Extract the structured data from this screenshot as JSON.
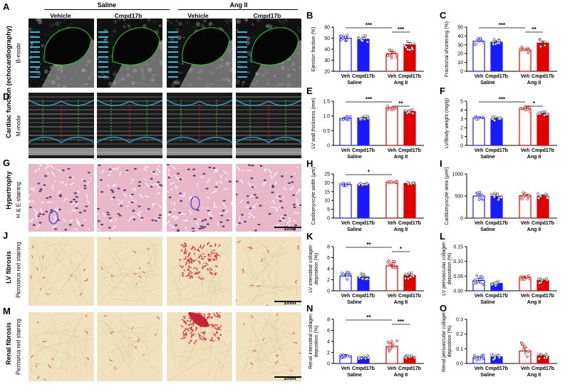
{
  "panel_labels": {
    "A": "A",
    "B": "B",
    "C": "C",
    "D": "D",
    "E": "E",
    "F": "F",
    "G": "G",
    "H": "H",
    "I": "I",
    "J": "J",
    "K": "K",
    "L": "L",
    "M": "M",
    "N": "N",
    "O": "O"
  },
  "groups": {
    "saline": "Saline",
    "angii": "Ang II",
    "vehicle": "Vehicle",
    "cmpd": "Cmpd17b"
  },
  "row_labels": {
    "cardiac": "Cardiac function (echocardiography)",
    "hypertrophy": "Hypertrophy",
    "lv_fibrosis": "LV fibrosis",
    "renal_fibrosis": "Renal fibrosis"
  },
  "modes": {
    "bmode": "B-mode",
    "mmode": "M-mode",
    "he": "H & E staining",
    "pr1": "Picrosirus red staining",
    "pr2": "Picrosirus red staining"
  },
  "scale_bars": {
    "g": "1mm",
    "j": "1mm",
    "m": "1mm"
  },
  "colors": {
    "veh": "#1a1aff",
    "cmpd": "#1a1aff",
    "ang_veh": "#e00000",
    "ang_cmpd": "#e00000"
  },
  "chart_data": [
    {
      "panel": "B",
      "type": "bar",
      "ylabel": "Ejection fraction (%)",
      "ylim": [
        20,
        60
      ],
      "yticks": [
        20,
        30,
        40,
        50,
        60
      ],
      "categories": [
        "Veh",
        "Cmpd17b",
        "Veh",
        "Cmpd17b"
      ],
      "groups": [
        "Saline",
        "Ang II"
      ],
      "values": [
        50,
        49,
        36,
        44
      ],
      "errors": [
        1.2,
        1.5,
        1.8,
        2
      ],
      "sig": [
        {
          "from": 0,
          "to": 2,
          "label": "***"
        },
        {
          "from": 2,
          "to": 3,
          "label": "***"
        }
      ]
    },
    {
      "panel": "C",
      "type": "bar",
      "ylabel": "Fractional shortening (%)",
      "ylim": [
        0,
        50
      ],
      "yticks": [
        0,
        10,
        20,
        30,
        40,
        50
      ],
      "categories": [
        "Veh",
        "Cmpd17b",
        "Veh",
        "Cmpd17b"
      ],
      "groups": [
        "Saline",
        "Ang II"
      ],
      "values": [
        34,
        33,
        24,
        32
      ],
      "errors": [
        1.5,
        1.5,
        1.5,
        2
      ],
      "sig": [
        {
          "from": 0,
          "to": 2,
          "label": "***"
        },
        {
          "from": 2,
          "to": 3,
          "label": "**"
        }
      ]
    },
    {
      "panel": "E",
      "type": "bar",
      "ylabel": "LV wall thickness (mm)",
      "ylim": [
        0,
        1.5
      ],
      "yticks": [
        0,
        0.5,
        1,
        1.5
      ],
      "ytick_labels": [
        "0",
        "0.5",
        "1.0",
        "1.5"
      ],
      "categories": [
        "Veh",
        "Cmpd17b",
        "Veh",
        "Cmpd17b"
      ],
      "groups": [
        "Saline",
        "Ang II"
      ],
      "values": [
        0.92,
        0.93,
        1.27,
        1.15
      ],
      "errors": [
        0.03,
        0.03,
        0.03,
        0.03
      ],
      "sig": [
        {
          "from": 0,
          "to": 2,
          "label": "***"
        },
        {
          "from": 2,
          "to": 3,
          "label": "**"
        }
      ]
    },
    {
      "panel": "F",
      "type": "bar",
      "ylabel": "LV/Body weight (mg/g)",
      "ylim": [
        0,
        5
      ],
      "yticks": [
        0,
        1,
        2,
        3,
        4,
        5
      ],
      "categories": [
        "Veh",
        "Cmpd17b",
        "Veh",
        "Cmpd17b"
      ],
      "groups": [
        "Saline",
        "Ang II"
      ],
      "values": [
        3.1,
        3.05,
        4.1,
        3.6
      ],
      "errors": [
        0.08,
        0.1,
        0.12,
        0.1
      ],
      "sig": [
        {
          "from": 0,
          "to": 2,
          "label": "***"
        },
        {
          "from": 2,
          "to": 3,
          "label": "*"
        }
      ]
    },
    {
      "panel": "H",
      "type": "bar",
      "ylabel": "Cardiomyocyte width (µm)",
      "ylim": [
        0,
        25
      ],
      "yticks": [
        0,
        5,
        10,
        15,
        20,
        25
      ],
      "categories": [
        "Veh",
        "Cmpd17b",
        "Veh",
        "Cmpd17b"
      ],
      "groups": [
        "Saline",
        "Ang II"
      ],
      "values": [
        19,
        19.2,
        20.2,
        19.6
      ],
      "errors": [
        0.4,
        0.4,
        0.3,
        0.3
      ],
      "sig": [
        {
          "from": 0,
          "to": 2,
          "label": "*"
        }
      ]
    },
    {
      "panel": "I",
      "type": "bar",
      "ylabel": "Cardiomyocyte area (µm²)",
      "ylim": [
        0,
        1000
      ],
      "yticks": [
        0,
        500,
        1000
      ],
      "categories": [
        "Veh",
        "Cmpd17b",
        "Veh",
        "Cmpd17b"
      ],
      "groups": [
        "Saline",
        "Ang II"
      ],
      "values": [
        500,
        495,
        505,
        500
      ],
      "errors": [
        40,
        40,
        30,
        25
      ],
      "sig": []
    },
    {
      "panel": "K",
      "type": "bar",
      "ylabel": "LV interstitial collagen deposition (%)",
      "ylim": [
        0,
        8
      ],
      "yticks": [
        0,
        2,
        4,
        6,
        8
      ],
      "categories": [
        "Veh",
        "Cmpd17b",
        "Veh",
        "Cmpd17b"
      ],
      "groups": [
        "Saline",
        "Ang II"
      ],
      "values": [
        2.7,
        2.5,
        4.5,
        2.8
      ],
      "errors": [
        0.3,
        0.25,
        0.5,
        0.25
      ],
      "sig": [
        {
          "from": 0,
          "to": 2,
          "label": "**"
        },
        {
          "from": 2,
          "to": 3,
          "label": "*"
        }
      ]
    },
    {
      "panel": "L",
      "type": "bar",
      "ylabel": "LV perivascular collagen deposition (%)",
      "ylim": [
        0,
        0.15
      ],
      "yticks": [
        0,
        0.05,
        0.1,
        0.15
      ],
      "ytick_labels": [
        "0.00",
        "0.05",
        "0.10",
        "0.15"
      ],
      "categories": [
        "Veh",
        "Cmpd17b",
        "Veh",
        "Cmpd17b"
      ],
      "groups": [
        "Saline",
        "Ang II"
      ],
      "values": [
        0.035,
        0.025,
        0.045,
        0.035
      ],
      "errors": [
        0.008,
        0.004,
        0.005,
        0.004
      ],
      "sig": []
    },
    {
      "panel": "N",
      "type": "bar",
      "ylabel": "Renal interstitial collagen deposition (%)",
      "ylim": [
        0,
        8
      ],
      "yticks": [
        0,
        2,
        4,
        6,
        8
      ],
      "categories": [
        "Veh",
        "Cmpd17b",
        "Veh",
        "Cmpd17b"
      ],
      "groups": [
        "Saline",
        "Ang II"
      ],
      "values": [
        1.4,
        1.1,
        3.1,
        1.2
      ],
      "errors": [
        0.2,
        0.15,
        0.5,
        0.15
      ],
      "sig": [
        {
          "from": 0,
          "to": 2,
          "label": "**"
        },
        {
          "from": 2,
          "to": 3,
          "label": "***"
        }
      ]
    },
    {
      "panel": "O",
      "type": "bar",
      "ylabel": "Renal perivascular collagen deposition (%)",
      "ylim": [
        0,
        0.3
      ],
      "yticks": [
        0,
        0.1,
        0.2,
        0.3
      ],
      "ytick_labels": [
        "0.0",
        "0.1",
        "0.2",
        "0.3"
      ],
      "categories": [
        "Veh",
        "Cmpd17b",
        "Veh",
        "Cmpd17b"
      ],
      "groups": [
        "Saline",
        "Ang II"
      ],
      "values": [
        0.04,
        0.045,
        0.085,
        0.05
      ],
      "errors": [
        0.008,
        0.008,
        0.025,
        0.008
      ],
      "sig": []
    }
  ]
}
